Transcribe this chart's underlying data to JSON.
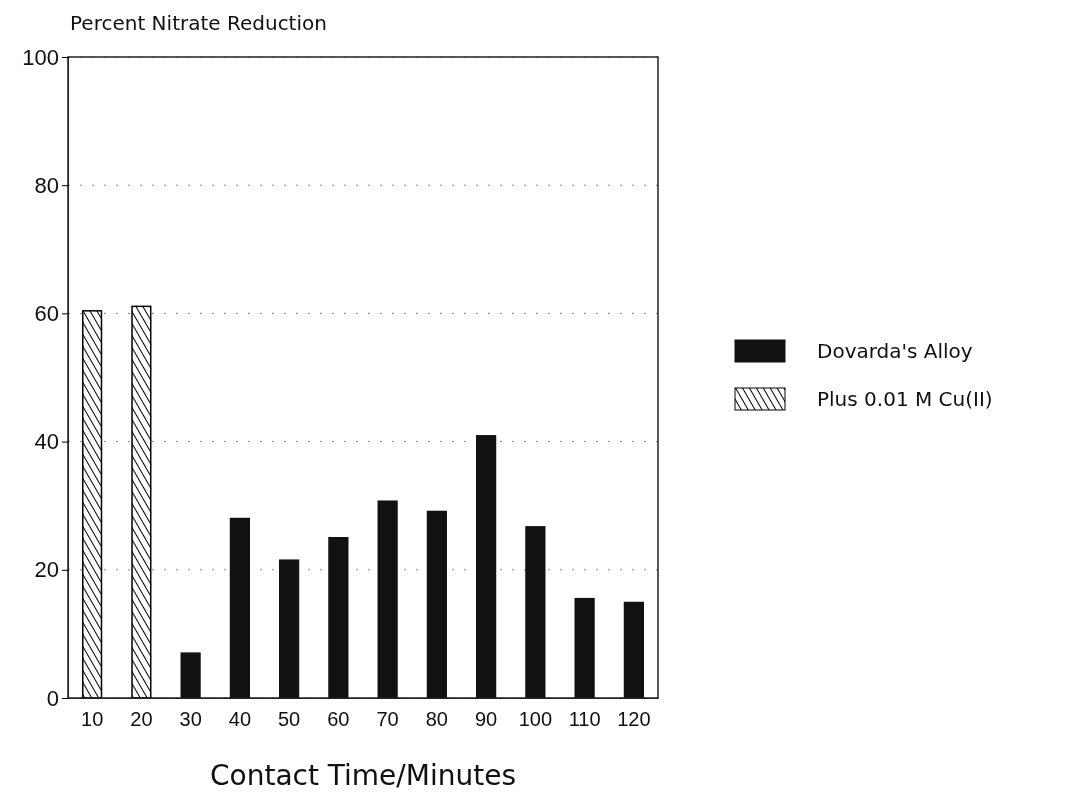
{
  "chart_data": {
    "type": "bar",
    "ylabel": "Percent Nitrate Reduction",
    "xlabel": "Contact Time/Minutes",
    "categories": [
      "10",
      "20",
      "30",
      "40",
      "50",
      "60",
      "70",
      "80",
      "90",
      "100",
      "110",
      "120"
    ],
    "series": [
      {
        "name": "Dovarda's Alloy",
        "color": "#111111",
        "values": [
          null,
          null,
          7,
          28,
          21.5,
          25,
          30.7,
          29.1,
          40.9,
          26.7,
          15.5,
          14.9
        ]
      },
      {
        "name": "Plus 0.01 M Cu(II)",
        "color": "#000000",
        "values": [
          60.4,
          61.1,
          null,
          null,
          null,
          null,
          null,
          null,
          null,
          null,
          null,
          null
        ]
      }
    ],
    "ylim": [
      0,
      100
    ],
    "yticks": [
      0,
      20,
      40,
      60,
      80,
      100
    ],
    "grid": "y",
    "legend": "right"
  }
}
